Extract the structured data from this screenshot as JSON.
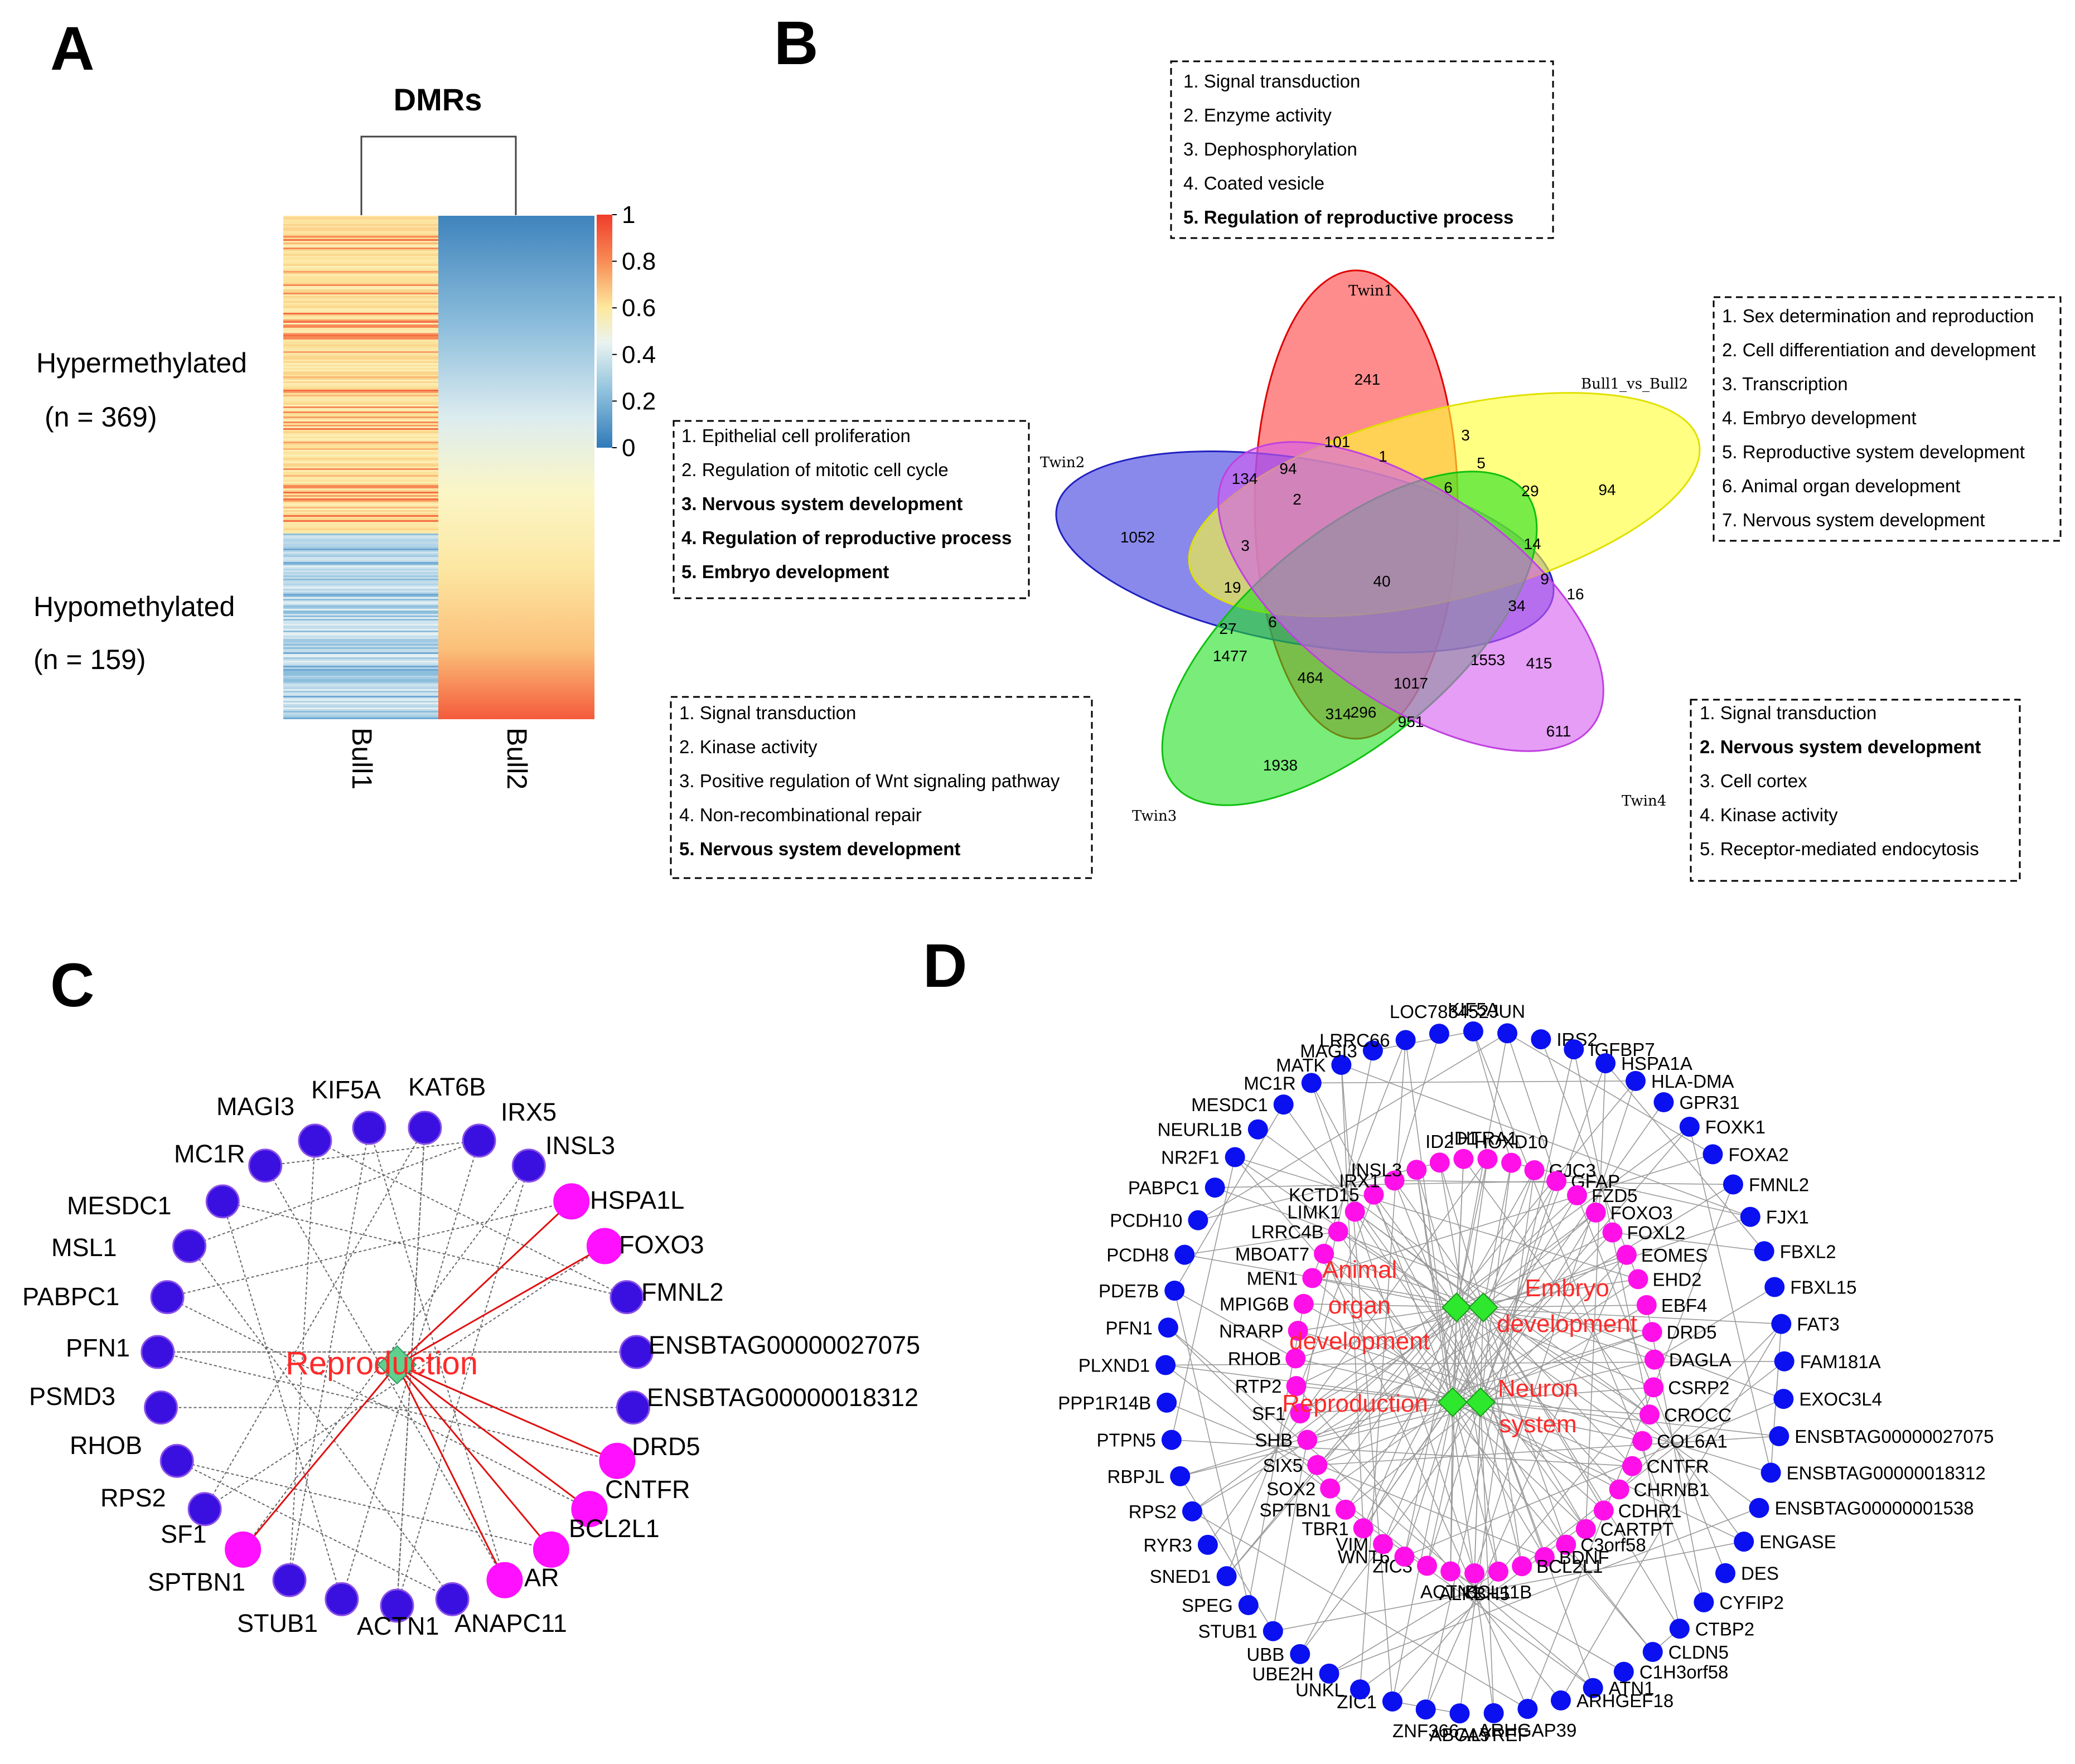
{
  "panels": {
    "A": "A",
    "B": "B",
    "C": "C",
    "D": "D"
  },
  "heatmap": {
    "title": "DMRs",
    "columns": [
      "Bull1",
      "Bull2"
    ],
    "hyper_label": "Hypermethylated",
    "hyper_n": "(n = 369)",
    "hypo_label": "Hypomethylated",
    "hypo_n": "(n = 159)",
    "colorbar_ticks": [
      "1",
      "0.8",
      "0.6",
      "0.4",
      "0.2",
      "0"
    ],
    "colors": {
      "high": "#f03c2b",
      "mid": "#fbf6b5",
      "low": "#2f7ab9"
    }
  },
  "venn": {
    "sets": [
      "Twin1",
      "Twin2",
      "Bull1_vs_Bull2",
      "Twin3",
      "Twin4"
    ],
    "set_colors": [
      "#ff4040",
      "#3a3ae0",
      "#ffff2e",
      "#1fe01f",
      "#d45cf0"
    ],
    "counts": [
      "241",
      "101",
      "3",
      "1",
      "5",
      "134",
      "94",
      "6",
      "29",
      "94",
      "1052",
      "2",
      "14",
      "3",
      "40",
      "9",
      "16",
      "19",
      "34",
      "27",
      "6",
      "1477",
      "1553",
      "415",
      "464",
      "1017",
      "314",
      "296",
      "951",
      "1938",
      "611"
    ],
    "boxes": {
      "top": [
        "1. Signal transduction",
        "2. Enzyme activity",
        "3. Dephosphorylation",
        "4. Coated vesicle",
        "5. Regulation of reproductive process"
      ],
      "right": [
        "1. Sex determination and reproduction",
        "2. Cell differentiation and development",
        "3. Transcription",
        "4. Embryo development",
        "5. Reproductive system development",
        "6. Animal organ development",
        "7. Nervous system development"
      ],
      "left": [
        "1. Epithelial cell proliferation",
        "2. Regulation of mitotic cell cycle",
        "3. Nervous system development",
        "4. Regulation of reproductive process",
        "5. Embryo development"
      ],
      "bottom_left": [
        "1. Signal transduction",
        "2. Kinase activity",
        "3. Positive regulation of Wnt signaling pathway",
        "4. Non-recombinational repair",
        "5. Nervous system development"
      ],
      "bottom_right": [
        "1. Signal transduction",
        "2. Nervous system development",
        "3. Cell cortex",
        "4. Kinase activity",
        "5. Receptor-mediated endocytosis"
      ]
    }
  },
  "network_c": {
    "hub": "Reproduction",
    "nodes": [
      "IRX5",
      "INSL3",
      "HSPA1L",
      "FOXO3",
      "FMNL2",
      "ENSBTAG00000027075",
      "ENSBTAG00000018312",
      "DRD5",
      "CNTFR",
      "BCL2L1",
      "AR",
      "ANAPC11",
      "ACTN1",
      "STUB1",
      "SPTBN1",
      "SF1",
      "RPS2",
      "RHOB",
      "PSMD3",
      "PFN1",
      "PABPC1",
      "MSL1",
      "MESDC1",
      "MC1R",
      "MAGI3",
      "KIF5A",
      "KAT6B"
    ],
    "colors": {
      "blue": "#3a10e0",
      "pink": "#ff10ff",
      "hub": "#5fd08e"
    }
  },
  "network_d": {
    "hubs": [
      "Animal organ development",
      "Embryo development",
      "Reproduction",
      "Neuron system"
    ],
    "hub_lines": [
      [
        "Animal",
        "organ",
        "development"
      ],
      [
        "Embryo",
        "development"
      ],
      [
        "Reproduction"
      ],
      [
        "Neuron",
        "system"
      ]
    ],
    "inner": [
      "HTRA1",
      "HOXD10",
      "GJC3",
      "GFAP",
      "FZD5",
      "FOXO3",
      "FOXL2",
      "EOMES",
      "EHD2",
      "EBF4",
      "DRD5",
      "DAGLA",
      "CSRP2",
      "CROCC",
      "COL6A1",
      "CNTFR",
      "CHRNB1",
      "CDHR1",
      "CARTPT",
      "C3orf58",
      "BDNF",
      "BCL2L1",
      "BCL11B",
      "ALKBH5",
      "ACTN1",
      "ZIC3",
      "WNT6",
      "VIM",
      "TBR1",
      "SPTBN1",
      "SOX2",
      "SIX5",
      "SHB",
      "SF1",
      "RTP2",
      "RHOB",
      "NRARP",
      "MPIG6B",
      "MEN1",
      "MBOAT7",
      "LRRC4B",
      "LIMK1",
      "KCTD15",
      "IRX1",
      "INSL3",
      "ID2",
      "ID1"
    ],
    "outer": [
      "JUN",
      "IRS2",
      "IGFBP7",
      "HSPA1A",
      "HLA-DMA",
      "GPR31",
      "FOXK1",
      "FOXA2",
      "FMNL2",
      "FJX1",
      "FBXL2",
      "FBXL15",
      "FAT3",
      "FAM181A",
      "EXOC3L4",
      "ENSBTAG00000027075",
      "ENSBTAG00000018312",
      "ENSBTAG00000001538",
      "ENGASE",
      "DES",
      "CYFIP2",
      "CTBP2",
      "CLDN5",
      "C1H3orf58",
      "ATN1",
      "ARHGEF18",
      "ARHGAP39",
      "ALYREF",
      "ABCA9",
      "ZNF366",
      "ZIC1",
      "UNKL",
      "UBE2H",
      "UBB",
      "STUB1",
      "SPEG",
      "SNED1",
      "RYR3",
      "RPS2",
      "RBPJL",
      "PTPN5",
      "PPP1R14B",
      "PLXND1",
      "PFN1",
      "PDE7B",
      "PCDH8",
      "PCDH10",
      "PABPC1",
      "NR2F1",
      "NEURL1B",
      "MESDC1",
      "MC1R",
      "MATK",
      "MAGI3",
      "LRRC66",
      "LOC783452",
      "KIF5A"
    ],
    "colors": {
      "blue": "#0a10f0",
      "pink": "#ff10e8",
      "hub": "#2ee82e"
    }
  }
}
